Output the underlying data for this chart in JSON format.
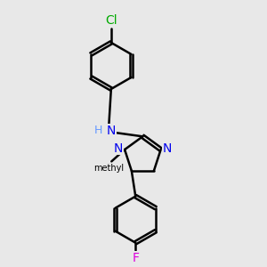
{
  "bg_color": "#e8e8e8",
  "bond_color": "#000000",
  "N_color": "#0000ee",
  "Cl_color": "#00aa00",
  "F_color": "#dd00dd",
  "H_color": "#6699ff",
  "line_width": 1.8,
  "figsize": [
    3.0,
    3.0
  ],
  "dpi": 100,
  "xlim": [
    0,
    10
  ],
  "ylim": [
    0,
    10
  ]
}
